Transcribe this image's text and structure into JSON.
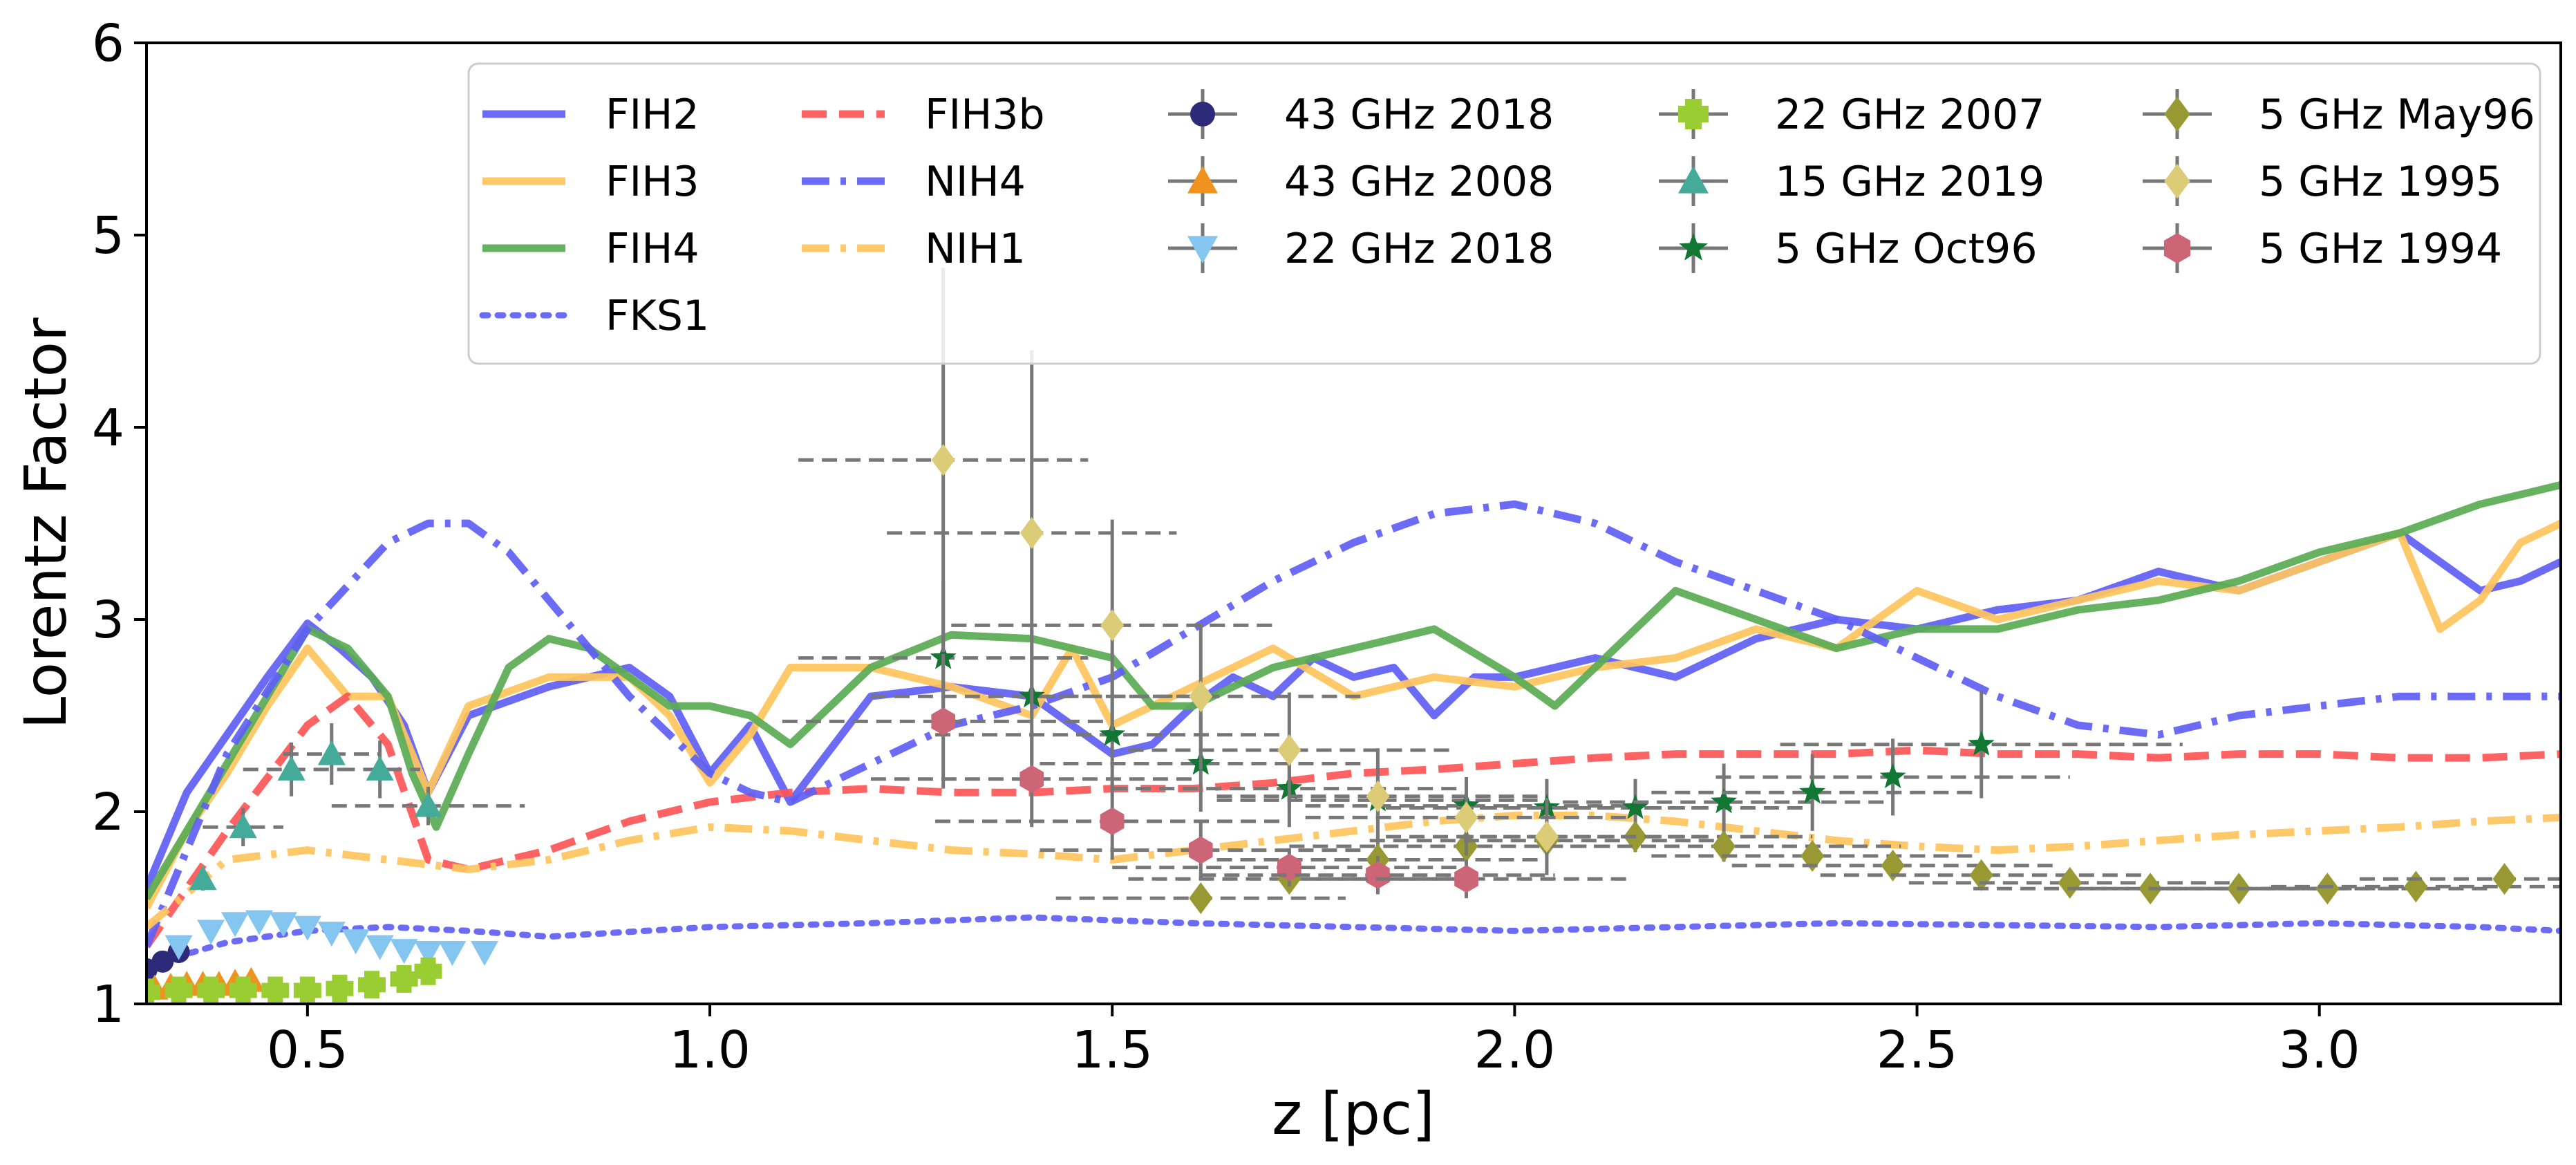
{
  "chart_data": {
    "type": "line",
    "title": "",
    "xlabel": "z [pc]",
    "ylabel": "Lorentz Factor",
    "xlim": [
      0.3,
      3.3
    ],
    "ylim": [
      1,
      6
    ],
    "xticks": [
      0.5,
      1.0,
      1.5,
      2.0,
      2.5,
      3.0
    ],
    "xtick_labels": [
      "0.5",
      "1.0",
      "1.5",
      "2.0",
      "2.5",
      "3.0"
    ],
    "yticks": [
      1,
      2,
      3,
      4,
      5,
      6
    ],
    "ytick_labels": [
      "1",
      "2",
      "3",
      "4",
      "5",
      "6"
    ],
    "legend_position": "upper-right",
    "colors": {
      "blue": "#5e5ef5",
      "orange": "#ffc45c",
      "green": "#5aab52",
      "red": "#ff5555",
      "errbar": "#777777"
    },
    "series": [
      {
        "name": "FIH2",
        "kind": "line",
        "color": "#5e5ef5",
        "dash": "solid",
        "x": [
          0.3,
          0.35,
          0.4,
          0.45,
          0.5,
          0.54,
          0.58,
          0.62,
          0.65,
          0.7,
          0.8,
          0.9,
          0.95,
          1.0,
          1.05,
          1.1,
          1.2,
          1.3,
          1.4,
          1.5,
          1.55,
          1.6,
          1.65,
          1.7,
          1.75,
          1.8,
          1.85,
          1.9,
          1.95,
          2.0,
          2.1,
          2.2,
          2.3,
          2.4,
          2.5,
          2.6,
          2.7,
          2.8,
          2.9,
          3.0,
          3.1,
          3.2,
          3.25,
          3.3
        ],
        "y": [
          1.6,
          2.1,
          2.4,
          2.7,
          2.98,
          2.85,
          2.7,
          2.45,
          2.1,
          2.5,
          2.65,
          2.75,
          2.6,
          2.2,
          2.45,
          2.05,
          2.6,
          2.65,
          2.6,
          2.3,
          2.35,
          2.55,
          2.7,
          2.6,
          2.8,
          2.7,
          2.75,
          2.5,
          2.7,
          2.7,
          2.8,
          2.7,
          2.9,
          3.0,
          2.95,
          3.05,
          3.1,
          3.25,
          3.15,
          3.3,
          3.45,
          3.15,
          3.2,
          3.3
        ]
      },
      {
        "name": "FIH3",
        "kind": "line",
        "color": "#ffc45c",
        "dash": "solid",
        "x": [
          0.3,
          0.35,
          0.4,
          0.45,
          0.5,
          0.55,
          0.6,
          0.65,
          0.7,
          0.8,
          0.9,
          0.95,
          1.0,
          1.05,
          1.1,
          1.2,
          1.3,
          1.4,
          1.45,
          1.5,
          1.6,
          1.7,
          1.8,
          1.9,
          2.0,
          2.1,
          2.2,
          2.3,
          2.4,
          2.5,
          2.6,
          2.7,
          2.8,
          2.9,
          3.0,
          3.1,
          3.15,
          3.2,
          3.25,
          3.3
        ],
        "y": [
          1.5,
          1.9,
          2.2,
          2.55,
          2.85,
          2.6,
          2.6,
          2.1,
          2.55,
          2.7,
          2.7,
          2.5,
          2.15,
          2.4,
          2.75,
          2.75,
          2.65,
          2.5,
          2.85,
          2.45,
          2.65,
          2.85,
          2.6,
          2.7,
          2.65,
          2.75,
          2.8,
          2.95,
          2.85,
          3.15,
          3.0,
          3.1,
          3.2,
          3.15,
          3.3,
          3.45,
          2.95,
          3.1,
          3.4,
          3.5
        ]
      },
      {
        "name": "FIH4",
        "kind": "line",
        "color": "#5aab52",
        "dash": "solid",
        "x": [
          0.3,
          0.35,
          0.4,
          0.45,
          0.5,
          0.55,
          0.6,
          0.63,
          0.66,
          0.7,
          0.75,
          0.8,
          0.85,
          0.9,
          0.95,
          1.0,
          1.05,
          1.1,
          1.2,
          1.3,
          1.4,
          1.5,
          1.55,
          1.6,
          1.7,
          1.8,
          1.9,
          2.0,
          2.05,
          2.1,
          2.15,
          2.2,
          2.3,
          2.4,
          2.5,
          2.6,
          2.7,
          2.8,
          2.9,
          3.0,
          3.1,
          3.2,
          3.25,
          3.3
        ],
        "y": [
          1.55,
          1.9,
          2.25,
          2.6,
          2.95,
          2.85,
          2.6,
          2.2,
          1.92,
          2.3,
          2.75,
          2.9,
          2.85,
          2.7,
          2.55,
          2.55,
          2.5,
          2.35,
          2.75,
          2.92,
          2.9,
          2.8,
          2.55,
          2.55,
          2.75,
          2.85,
          2.95,
          2.7,
          2.55,
          2.75,
          2.95,
          3.15,
          3.0,
          2.85,
          2.95,
          2.95,
          3.05,
          3.1,
          3.2,
          3.35,
          3.45,
          3.6,
          3.65,
          3.7
        ]
      },
      {
        "name": "FKS1",
        "kind": "line",
        "color": "#5e5ef5",
        "dash": "dotted",
        "x": [
          0.3,
          0.4,
          0.5,
          0.6,
          0.7,
          0.8,
          1.0,
          1.2,
          1.4,
          1.6,
          1.8,
          2.0,
          2.2,
          2.4,
          2.6,
          2.8,
          3.0,
          3.2,
          3.3
        ],
        "y": [
          1.2,
          1.32,
          1.38,
          1.4,
          1.38,
          1.35,
          1.4,
          1.42,
          1.45,
          1.42,
          1.4,
          1.38,
          1.4,
          1.42,
          1.41,
          1.4,
          1.42,
          1.4,
          1.38
        ]
      },
      {
        "name": "FIH3b",
        "kind": "line",
        "color": "#ff5555",
        "dash": "dashed",
        "x": [
          0.3,
          0.4,
          0.5,
          0.55,
          0.6,
          0.65,
          0.7,
          0.8,
          0.9,
          1.0,
          1.1,
          1.2,
          1.3,
          1.4,
          1.5,
          1.6,
          1.7,
          1.8,
          1.9,
          2.0,
          2.1,
          2.2,
          2.3,
          2.4,
          2.5,
          2.6,
          2.7,
          2.8,
          2.9,
          3.0,
          3.1,
          3.2,
          3.3
        ],
        "y": [
          1.3,
          1.9,
          2.45,
          2.6,
          2.35,
          1.75,
          1.7,
          1.8,
          1.95,
          2.05,
          2.1,
          2.12,
          2.1,
          2.1,
          2.12,
          2.12,
          2.15,
          2.2,
          2.22,
          2.25,
          2.28,
          2.3,
          2.3,
          2.3,
          2.32,
          2.3,
          2.3,
          2.28,
          2.3,
          2.3,
          2.28,
          2.28,
          2.3
        ]
      },
      {
        "name": "NIH4",
        "kind": "line",
        "color": "#5e5ef5",
        "dash": "dashdot",
        "x": [
          0.3,
          0.4,
          0.5,
          0.6,
          0.65,
          0.7,
          0.75,
          0.8,
          0.9,
          1.0,
          1.05,
          1.1,
          1.2,
          1.3,
          1.4,
          1.5,
          1.6,
          1.7,
          1.8,
          1.9,
          2.0,
          2.1,
          2.2,
          2.3,
          2.4,
          2.5,
          2.6,
          2.7,
          2.8,
          2.9,
          3.0,
          3.1,
          3.2,
          3.3
        ],
        "y": [
          1.3,
          2.3,
          2.95,
          3.4,
          3.5,
          3.5,
          3.35,
          3.1,
          2.6,
          2.2,
          2.1,
          2.05,
          2.25,
          2.45,
          2.55,
          2.7,
          2.95,
          3.2,
          3.4,
          3.55,
          3.6,
          3.5,
          3.3,
          3.15,
          3.0,
          2.8,
          2.6,
          2.45,
          2.4,
          2.5,
          2.55,
          2.6,
          2.6,
          2.6
        ]
      },
      {
        "name": "NIH1",
        "kind": "line",
        "color": "#ffc45c",
        "dash": "dashdot",
        "x": [
          0.3,
          0.4,
          0.5,
          0.6,
          0.7,
          0.8,
          0.9,
          1.0,
          1.1,
          1.2,
          1.3,
          1.4,
          1.5,
          1.6,
          1.7,
          1.8,
          1.9,
          2.0,
          2.1,
          2.2,
          2.3,
          2.4,
          2.5,
          2.6,
          2.7,
          2.8,
          2.9,
          3.0,
          3.1,
          3.2,
          3.3
        ],
        "y": [
          1.4,
          1.75,
          1.8,
          1.75,
          1.7,
          1.75,
          1.85,
          1.92,
          1.9,
          1.85,
          1.8,
          1.78,
          1.75,
          1.8,
          1.85,
          1.9,
          1.95,
          1.98,
          1.98,
          1.95,
          1.9,
          1.85,
          1.82,
          1.8,
          1.82,
          1.85,
          1.88,
          1.9,
          1.92,
          1.95,
          1.97
        ]
      },
      {
        "name": "43 GHz 2018",
        "kind": "points",
        "marker": "circle",
        "color": "#2e2a7a",
        "x": [
          0.3,
          0.32,
          0.34
        ],
        "y": [
          1.18,
          1.22,
          1.27
        ]
      },
      {
        "name": "43 GHz 2008",
        "kind": "points",
        "marker": "triangle-up",
        "color": "#f0921e",
        "x": [
          0.31,
          0.33,
          0.35,
          0.37,
          0.39,
          0.41,
          0.43
        ],
        "y": [
          1.08,
          1.09,
          1.1,
          1.1,
          1.1,
          1.11,
          1.12
        ]
      },
      {
        "name": "22 GHz 2018",
        "kind": "points",
        "marker": "triangle-down",
        "color": "#84c6f0",
        "x": [
          0.34,
          0.38,
          0.41,
          0.44,
          0.47,
          0.5,
          0.53,
          0.56,
          0.59,
          0.62,
          0.65,
          0.68,
          0.72
        ],
        "y": [
          1.3,
          1.38,
          1.42,
          1.43,
          1.42,
          1.4,
          1.37,
          1.33,
          1.3,
          1.28,
          1.27,
          1.27,
          1.27
        ]
      },
      {
        "name": "22 GHz 2007",
        "kind": "points",
        "marker": "plus",
        "color": "#9acd32",
        "x": [
          0.3,
          0.34,
          0.38,
          0.42,
          0.46,
          0.5,
          0.54,
          0.58,
          0.62,
          0.65
        ],
        "y": [
          1.06,
          1.07,
          1.07,
          1.07,
          1.07,
          1.07,
          1.08,
          1.1,
          1.13,
          1.17
        ]
      },
      {
        "name": "15 GHz 2019",
        "kind": "points",
        "marker": "triangle-up",
        "color": "#44aa99",
        "x": [
          0.37,
          0.42,
          0.48,
          0.53,
          0.59,
          0.65
        ],
        "y": [
          1.65,
          1.92,
          2.22,
          2.3,
          2.22,
          2.03
        ],
        "yerr": [
          0.06,
          0.1,
          0.14,
          0.16,
          0.15,
          0.1
        ],
        "xerr": [
          0.0,
          0.05,
          0.06,
          0.06,
          0.05,
          0.12
        ]
      },
      {
        "name": "5 GHz Oct96",
        "kind": "points",
        "marker": "star",
        "color": "#117733",
        "x": [
          1.29,
          1.4,
          1.5,
          1.61,
          1.72,
          1.83,
          1.94,
          2.04,
          2.15,
          2.26,
          2.37,
          2.47,
          2.58
        ],
        "y": [
          2.8,
          2.6,
          2.4,
          2.25,
          2.12,
          2.06,
          2.03,
          2.02,
          2.02,
          2.05,
          2.1,
          2.18,
          2.35
        ],
        "yerr": [
          0.4,
          0.35,
          0.3,
          0.25,
          0.2,
          0.2,
          0.15,
          0.15,
          0.15,
          0.2,
          0.2,
          0.2,
          0.28
        ],
        "xerr": [
          0.18,
          0.2,
          0.22,
          0.2,
          0.22,
          0.2,
          0.2,
          0.2,
          0.22,
          0.2,
          0.2,
          0.22,
          0.25
        ]
      },
      {
        "name": "5 GHz May96",
        "kind": "points",
        "marker": "diamond",
        "color": "#999933",
        "x": [
          1.61,
          1.72,
          1.83,
          1.94,
          2.04,
          2.15,
          2.26,
          2.37,
          2.47,
          2.58,
          2.69,
          2.79,
          2.9,
          3.01,
          3.12,
          3.23
        ],
        "y": [
          1.55,
          1.65,
          1.75,
          1.82,
          1.85,
          1.87,
          1.82,
          1.77,
          1.72,
          1.67,
          1.63,
          1.6,
          1.6,
          1.6,
          1.61,
          1.65
        ],
        "yerr": [
          0.05,
          0.06,
          0.08,
          0.08,
          0.08,
          0.08,
          0.08,
          0.06,
          0.06,
          0.06,
          0.05,
          0.05,
          0.05,
          0.05,
          0.05,
          0.05
        ],
        "xerr": [
          0.18,
          0.2,
          0.2,
          0.22,
          0.22,
          0.22,
          0.22,
          0.2,
          0.2,
          0.2,
          0.2,
          0.22,
          0.2,
          0.2,
          0.18,
          0.18
        ]
      },
      {
        "name": "5 GHz 1995",
        "kind": "points",
        "marker": "diamond",
        "color": "#ddcc77",
        "x": [
          1.29,
          1.4,
          1.5,
          1.61,
          1.72,
          1.83,
          1.94,
          2.04
        ],
        "y": [
          3.83,
          3.45,
          2.97,
          2.6,
          2.32,
          2.08,
          1.97,
          1.87
        ],
        "yerr": [
          1.0,
          0.95,
          0.55,
          0.38,
          0.3,
          0.25,
          0.2,
          0.2
        ],
        "xerr": [
          0.18,
          0.18,
          0.2,
          0.2,
          0.2,
          0.2,
          0.2,
          0.2
        ]
      },
      {
        "name": "5 GHz 1994",
        "kind": "points",
        "marker": "hexagon",
        "color": "#cc6677",
        "x": [
          1.29,
          1.4,
          1.5,
          1.61,
          1.72,
          1.83,
          1.94
        ],
        "y": [
          2.47,
          2.17,
          1.95,
          1.8,
          1.71,
          1.67,
          1.65
        ],
        "yerr": [
          0.35,
          0.25,
          0.2,
          0.15,
          0.1,
          0.1,
          0.1
        ],
        "xerr": [
          0.2,
          0.2,
          0.22,
          0.2,
          0.22,
          0.22,
          0.2
        ]
      }
    ]
  }
}
